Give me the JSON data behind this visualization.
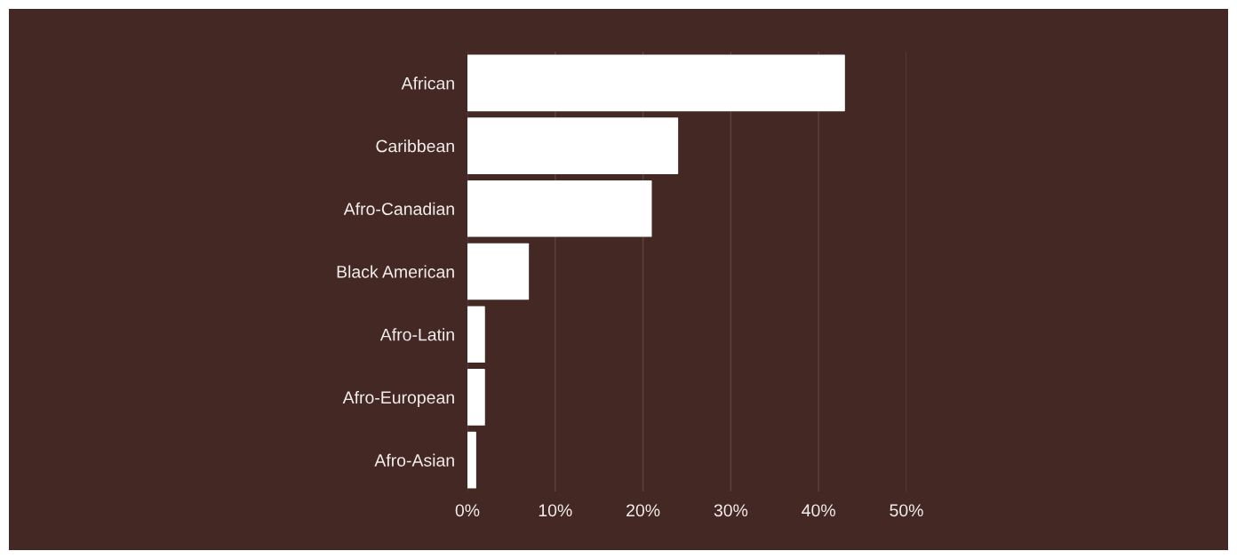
{
  "chart_data": {
    "type": "bar",
    "orientation": "horizontal",
    "categories": [
      "African",
      "Caribbean",
      "Afro-Canadian",
      "Black American",
      "Afro-Latin",
      "Afro-European",
      "Afro-Asian"
    ],
    "values": [
      43,
      24,
      21,
      7,
      2,
      2,
      1
    ],
    "color": "#ffffff",
    "xlim": [
      0,
      50
    ],
    "xticks": [
      {
        "value": 0,
        "label": "0%"
      },
      {
        "value": 10,
        "label": "10%"
      },
      {
        "value": 20,
        "label": "20%"
      },
      {
        "value": 30,
        "label": "30%"
      },
      {
        "value": 40,
        "label": "40%"
      },
      {
        "value": 50,
        "label": "50%"
      }
    ],
    "grid": "x"
  }
}
